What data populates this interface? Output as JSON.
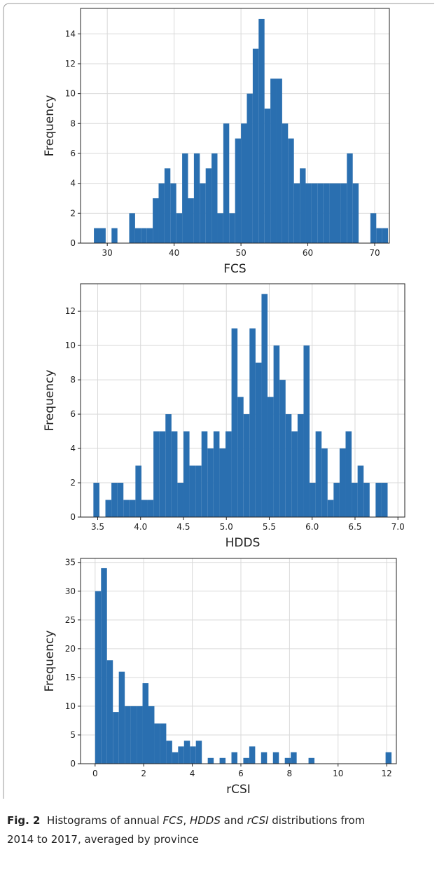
{
  "chart_data": [
    {
      "type": "histogram",
      "x_label": "FCS",
      "y_label": "Frequency",
      "color": "#2a6fb0",
      "grid": true,
      "bins": [
        28,
        28.88,
        29.76,
        30.64,
        31.52,
        32.4,
        33.28,
        34.16,
        35.04,
        35.92,
        36.8,
        37.68,
        38.56,
        39.44,
        40.32,
        41.2,
        42.08,
        42.96,
        43.84,
        44.72,
        45.6,
        46.48,
        47.36,
        48.24,
        49.12,
        50,
        50.88,
        51.76,
        52.64,
        53.52,
        54.4,
        55.28,
        56.16,
        57.04,
        57.92,
        58.8,
        59.68,
        60.56,
        61.44,
        62.32,
        63.2,
        64.08,
        64.96,
        65.84,
        66.72,
        67.6,
        68.48,
        69.36,
        70.24,
        71.12,
        72
      ],
      "values": [
        1,
        1,
        0,
        1,
        0,
        0,
        2,
        1,
        1,
        1,
        3,
        4,
        5,
        4,
        2,
        6,
        3,
        6,
        4,
        5,
        6,
        2,
        8,
        2,
        7,
        8,
        10,
        13,
        15,
        9,
        11,
        11,
        8,
        7,
        4,
        5,
        4,
        4,
        4,
        4,
        4,
        4,
        4,
        6,
        4,
        0,
        0,
        2,
        1,
        1
      ],
      "xlim": [
        26,
        72.2
      ],
      "xticks": [
        30,
        40,
        50,
        60,
        70
      ],
      "ylim": [
        0,
        15.7
      ],
      "yticks": [
        0,
        2,
        4,
        6,
        8,
        10,
        12,
        14
      ]
    },
    {
      "type": "histogram",
      "x_label": "HDDS",
      "y_label": "Frequency",
      "color": "#2a6fb0",
      "grid": true,
      "bins": [
        3.45,
        3.52,
        3.59,
        3.66,
        3.73,
        3.8,
        3.87,
        3.94,
        4.01,
        4.08,
        4.15,
        4.22,
        4.29,
        4.36,
        4.43,
        4.5,
        4.57,
        4.64,
        4.71,
        4.78,
        4.85,
        4.92,
        4.99,
        5.06,
        5.13,
        5.2,
        5.27,
        5.34,
        5.41,
        5.48,
        5.55,
        5.62,
        5.69,
        5.76,
        5.83,
        5.9,
        5.97,
        6.04,
        6.11,
        6.18,
        6.25,
        6.32,
        6.39,
        6.46,
        6.53,
        6.6,
        6.67,
        6.74,
        6.81,
        6.88,
        6.95
      ],
      "values": [
        2,
        0,
        1,
        2,
        2,
        1,
        1,
        3,
        1,
        1,
        5,
        5,
        6,
        5,
        2,
        5,
        3,
        3,
        5,
        4,
        5,
        4,
        5,
        11,
        7,
        6,
        11,
        9,
        13,
        7,
        10,
        8,
        6,
        5,
        6,
        10,
        2,
        5,
        4,
        1,
        2,
        4,
        5,
        2,
        3,
        2,
        0,
        2,
        2,
        0
      ],
      "xlim": [
        3.3,
        7.08
      ],
      "xticks": [
        {
          "value": 3.5,
          "label": "3.5"
        },
        {
          "value": 4,
          "label": "4.0"
        },
        {
          "value": 4.5,
          "label": "4.5"
        },
        {
          "value": 5,
          "label": "5.0"
        },
        {
          "value": 5.5,
          "label": "5.5"
        },
        {
          "value": 6,
          "label": "6.0"
        },
        {
          "value": 6.5,
          "label": "6.5"
        },
        {
          "value": 7,
          "label": "7.0"
        }
      ],
      "ylim": [
        0,
        13.6
      ],
      "yticks": [
        0,
        2,
        4,
        6,
        8,
        10,
        12
      ]
    },
    {
      "type": "histogram",
      "x_label": "rCSI",
      "y_label": "Frequency",
      "color": "#2a6fb0",
      "grid": true,
      "bins": [
        0,
        0.244,
        0.488,
        0.732,
        0.976,
        1.22,
        1.464,
        1.708,
        1.952,
        2.196,
        2.44,
        2.684,
        2.928,
        3.172,
        3.416,
        3.66,
        3.904,
        4.148,
        4.392,
        4.636,
        4.88,
        5.124,
        5.368,
        5.612,
        5.856,
        6.1,
        6.344,
        6.588,
        6.832,
        7.076,
        7.32,
        7.564,
        7.808,
        8.052,
        8.296,
        8.54,
        8.784,
        9.028,
        9.272,
        9.516,
        9.76,
        10.004,
        10.248,
        10.492,
        10.736,
        10.98,
        11.224,
        11.468,
        11.712,
        11.956,
        12.2
      ],
      "values": [
        30,
        34,
        18,
        9,
        16,
        10,
        10,
        10,
        14,
        10,
        7,
        7,
        4,
        2,
        3,
        4,
        3,
        4,
        0,
        1,
        0,
        1,
        0,
        2,
        0,
        1,
        3,
        0,
        2,
        0,
        2,
        0,
        1,
        2,
        0,
        0,
        1,
        0,
        0,
        0,
        0,
        0,
        0,
        0,
        0,
        0,
        0,
        0,
        0,
        2
      ],
      "xlim": [
        -0.6,
        12.4
      ],
      "xticks": [
        0,
        2,
        4,
        6,
        8,
        10,
        12
      ],
      "ylim": [
        0,
        35.7
      ],
      "yticks": [
        0,
        5,
        10,
        15,
        20,
        25,
        30,
        35
      ]
    }
  ],
  "caption": {
    "label": "Fig. 2",
    "parts": [
      "Histograms of annual ",
      "FCS",
      ", ",
      "HDDS",
      " and ",
      "rCSI",
      " distributions from",
      "2014 to 2017, averaged by province"
    ]
  }
}
